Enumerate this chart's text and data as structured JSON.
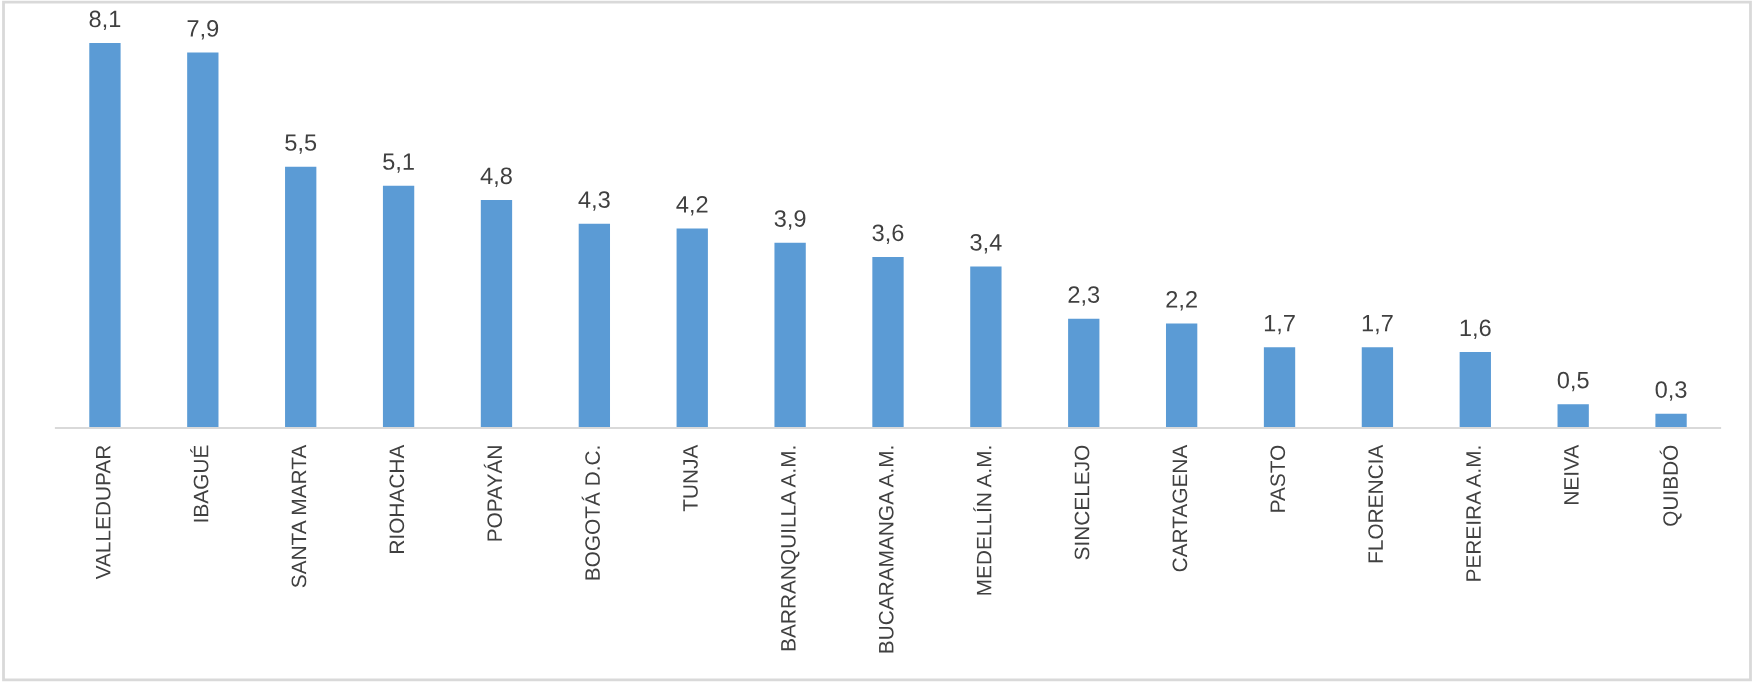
{
  "chart_data": {
    "type": "bar",
    "categories": [
      "VALLEDUPAR",
      "IBAGUÉ",
      "SANTA MARTA",
      "RIOHACHA",
      "POPAYÁN",
      "BOGOTÁ D.C.",
      "TUNJA",
      "BARRANQUILLA A.M.",
      "BUCARAMANGA A.M.",
      "MEDELLÍN A.M.",
      "SINCELEJO",
      "CARTAGENA",
      "PASTO",
      "FLORENCIA",
      "PEREIRA A.M.",
      "NEIVA",
      "QUIBDÓ"
    ],
    "values": [
      8.1,
      7.9,
      5.5,
      5.1,
      4.8,
      4.3,
      4.2,
      3.9,
      3.6,
      3.4,
      2.3,
      2.2,
      1.7,
      1.7,
      1.6,
      0.5,
      0.3
    ],
    "value_labels": [
      "8,1",
      "7,9",
      "5,5",
      "5,1",
      "4,8",
      "4,3",
      "4,2",
      "3,9",
      "3,6",
      "3,4",
      "2,3",
      "2,2",
      "1,7",
      "1,7",
      "1,6",
      "0,5",
      "0,3"
    ],
    "color": "#5b9bd5",
    "grid": false,
    "legend": false
  }
}
